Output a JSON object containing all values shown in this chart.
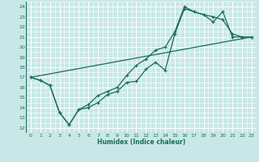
{
  "xlabel": "Humidex (Indice chaleur)",
  "bg_color": "#c8e8e8",
  "grid_color": "#ffffff",
  "line_color": "#1a6b5a",
  "xlim": [
    -0.5,
    23.5
  ],
  "ylim": [
    11.5,
    24.5
  ],
  "xticks": [
    0,
    1,
    2,
    3,
    4,
    5,
    6,
    7,
    8,
    9,
    10,
    11,
    12,
    13,
    14,
    15,
    16,
    17,
    18,
    19,
    20,
    21,
    22,
    23
  ],
  "yticks": [
    12,
    13,
    14,
    15,
    16,
    17,
    18,
    19,
    20,
    21,
    22,
    23,
    24
  ],
  "line1_x": [
    0,
    1,
    2,
    3,
    4,
    5,
    6,
    7,
    8,
    9,
    10,
    11,
    12,
    13,
    14,
    15,
    16,
    17,
    18,
    19,
    20,
    21,
    22,
    23
  ],
  "line1_y": [
    17.0,
    16.7,
    16.2,
    13.5,
    12.3,
    13.8,
    14.0,
    14.5,
    15.3,
    15.6,
    16.5,
    16.6,
    17.8,
    18.5,
    17.7,
    21.3,
    23.8,
    23.5,
    23.2,
    22.5,
    23.5,
    21.0,
    21.0,
    21.0
  ],
  "line2_x": [
    0,
    1,
    2,
    3,
    4,
    5,
    6,
    7,
    8,
    9,
    10,
    11,
    12,
    13,
    14,
    15,
    16,
    17,
    18,
    19,
    20,
    21,
    22,
    23
  ],
  "line2_y": [
    17.0,
    16.7,
    16.2,
    13.5,
    12.3,
    13.8,
    14.3,
    15.2,
    15.6,
    16.0,
    17.2,
    18.2,
    18.8,
    19.7,
    20.0,
    21.5,
    24.0,
    23.5,
    23.2,
    23.0,
    22.7,
    21.3,
    21.0,
    21.0
  ],
  "line3_x": [
    0,
    23
  ],
  "line3_y": [
    17.0,
    21.0
  ],
  "marker": "+",
  "markersize": 3.5,
  "linewidth": 0.9
}
